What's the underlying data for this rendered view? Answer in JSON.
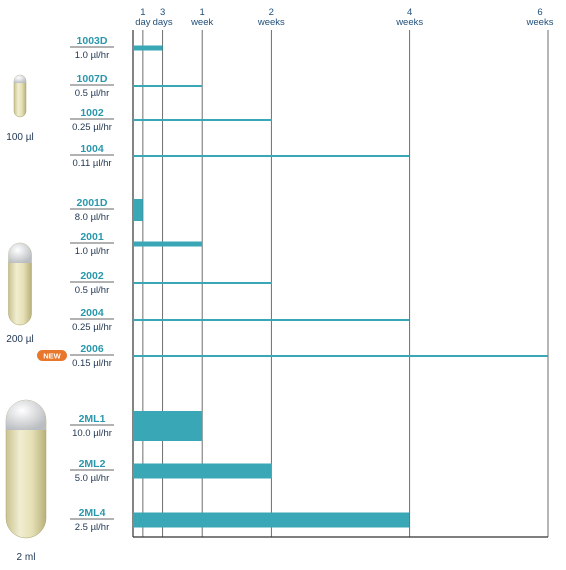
{
  "chart_data": {
    "type": "bar",
    "orientation": "horizontal",
    "x_unit": "days",
    "xlim": [
      0,
      42
    ],
    "x_ticks": [
      {
        "value": 1,
        "label_top": "1",
        "label_bottom": "day"
      },
      {
        "value": 3,
        "label_top": "3",
        "label_bottom": "days"
      },
      {
        "value": 7,
        "label_top": "1",
        "label_bottom": "week"
      },
      {
        "value": 14,
        "label_top": "2",
        "label_bottom": "weeks"
      },
      {
        "value": 28,
        "label_top": "4",
        "label_bottom": "weeks"
      },
      {
        "value": 42,
        "label_top": "6",
        "label_bottom": "weeks"
      }
    ],
    "colors": {
      "bar": "#3aa7b6",
      "model_label": "#2b97ab",
      "axis": "#333333",
      "badge": "#e8762b"
    },
    "groups": [
      {
        "volume_label": "100 µl",
        "items": [
          {
            "model": "1003D",
            "rate": "1.0 µl/hr",
            "duration_days": 3,
            "weight": "medium"
          },
          {
            "model": "1007D",
            "rate": "0.5 µl/hr",
            "duration_days": 7,
            "weight": "thin"
          },
          {
            "model": "1002",
            "rate": "0.25 µl/hr",
            "duration_days": 14,
            "weight": "thin"
          },
          {
            "model": "1004",
            "rate": "0.11 µl/hr",
            "duration_days": 28,
            "weight": "thin"
          }
        ]
      },
      {
        "volume_label": "200 µl",
        "items": [
          {
            "model": "2001D",
            "rate": "8.0 µl/hr",
            "duration_days": 1,
            "weight": "thick"
          },
          {
            "model": "2001",
            "rate": "1.0 µl/hr",
            "duration_days": 7,
            "weight": "medium"
          },
          {
            "model": "2002",
            "rate": "0.5 µl/hr",
            "duration_days": 14,
            "weight": "thin"
          },
          {
            "model": "2004",
            "rate": "0.25 µl/hr",
            "duration_days": 28,
            "weight": "thin"
          },
          {
            "model": "2006",
            "rate": "0.15 µl/hr",
            "duration_days": 42,
            "weight": "thin",
            "badge": "NEW"
          }
        ]
      },
      {
        "volume_label": "2 ml",
        "items": [
          {
            "model": "2ML1",
            "rate": "10.0 µl/hr",
            "duration_days": 7,
            "weight": "xthick"
          },
          {
            "model": "2ML2",
            "rate": "5.0 µl/hr",
            "duration_days": 14,
            "weight": "wide"
          },
          {
            "model": "2ML4",
            "rate": "2.5 µl/hr",
            "duration_days": 28,
            "weight": "wide"
          }
        ]
      }
    ]
  }
}
